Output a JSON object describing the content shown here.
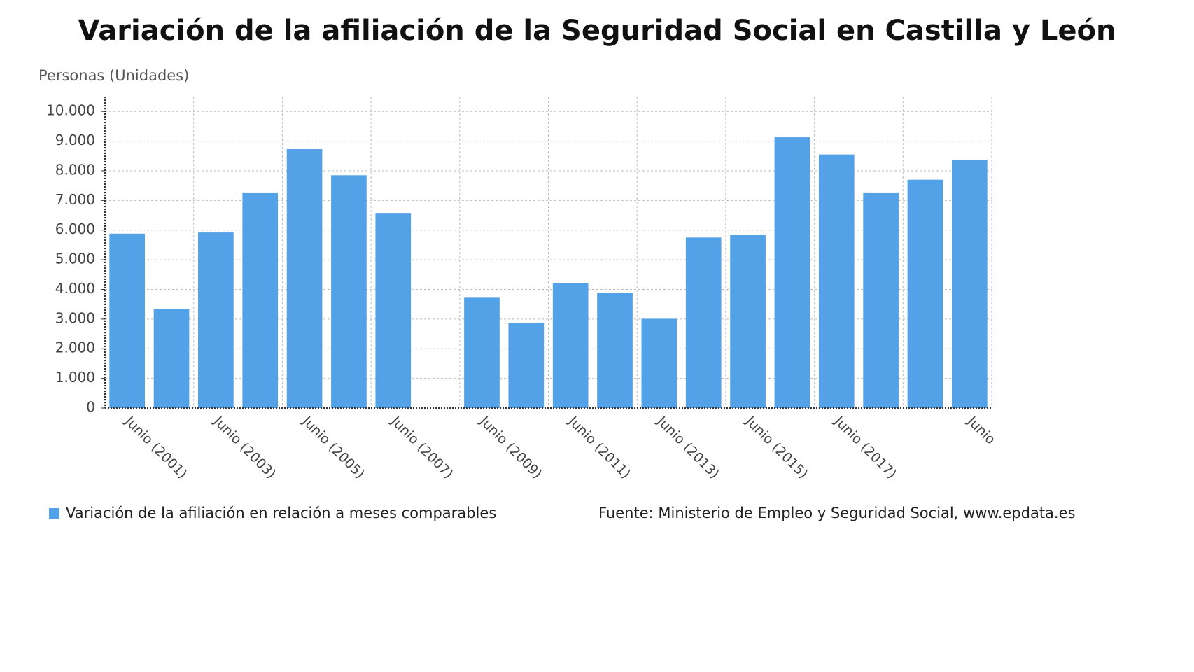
{
  "chart_data": {
    "type": "bar",
    "title": "Variación de la afiliación de la Seguridad Social en Castilla y León",
    "y_label": "Personas (Unidades)",
    "categories": [
      "Junio (2001)",
      null,
      "Junio (2003)",
      null,
      "Junio (2005)",
      null,
      "Junio (2007)",
      null,
      "Junio (2009)",
      null,
      "Junio (2011)",
      null,
      "Junio (2013)",
      null,
      "Junio (2015)",
      null,
      "Junio (2017)",
      null,
      null,
      "Junio"
    ],
    "series": [
      {
        "name": "Variación de la afiliación en relación a meses comparables",
        "color": "#53a1e6",
        "values": [
          5880,
          3340,
          5920,
          7270,
          8730,
          7850,
          6580,
          null,
          3720,
          2880,
          4220,
          3890,
          3010,
          5750,
          5850,
          9130,
          8550,
          7270,
          7700,
          8370
        ]
      }
    ],
    "ylim": [
      0,
      10500
    ],
    "yticks": [
      0,
      {
        "value": 1000,
        "label": "1.000"
      },
      {
        "value": 2000,
        "label": "2.000"
      },
      {
        "value": 3000,
        "label": "3.000"
      },
      {
        "value": 4000,
        "label": "4.000"
      },
      {
        "value": 5000,
        "label": "5.000"
      },
      {
        "value": 6000,
        "label": "6.000"
      },
      {
        "value": 7000,
        "label": "7.000"
      },
      {
        "value": 8000,
        "label": "8.000"
      },
      {
        "value": 9000,
        "label": "9.000"
      },
      {
        "value": 10000,
        "label": "10.000"
      }
    ],
    "grid": true,
    "source": "Fuente: Ministerio de Empleo y Seguridad Social, www.epdata.es"
  }
}
